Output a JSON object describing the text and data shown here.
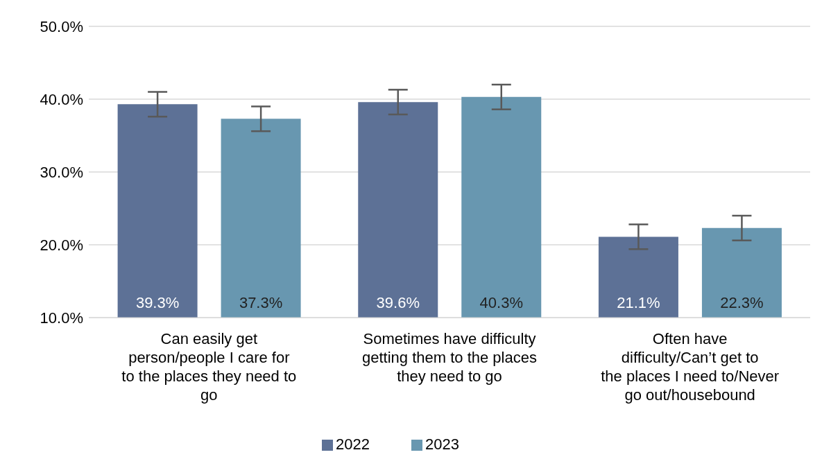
{
  "chart_data": {
    "type": "bar",
    "categories": [
      "Can easily get person/people I care for to the places they need to go",
      "Sometimes have difficulty getting them to the places they need to go",
      "Often have difficulty/Can’t get to the places I need to/Never go out/housebound"
    ],
    "series": [
      {
        "name": "2022",
        "color": "#5d7196",
        "values": [
          39.3,
          39.6,
          21.1
        ],
        "errors": [
          1.7,
          1.7,
          1.7
        ],
        "value_labels": [
          "39.3%",
          "39.6%",
          "21.1%"
        ]
      },
      {
        "name": "2023",
        "color": "#6897b0",
        "values": [
          37.3,
          40.3,
          22.3
        ],
        "errors": [
          1.7,
          1.7,
          1.7
        ],
        "value_labels": [
          "37.3%",
          "40.3%",
          "22.3%"
        ]
      }
    ],
    "ylim": [
      10,
      50
    ],
    "yticks": [
      {
        "value": 10,
        "label": "10.0%"
      },
      {
        "value": 20,
        "label": "20.0%"
      },
      {
        "value": 30,
        "label": "30.0%"
      },
      {
        "value": 40,
        "label": "40.0%"
      },
      {
        "value": 50,
        "label": "50.0%"
      }
    ],
    "grid": "y",
    "legend": "bottom"
  }
}
